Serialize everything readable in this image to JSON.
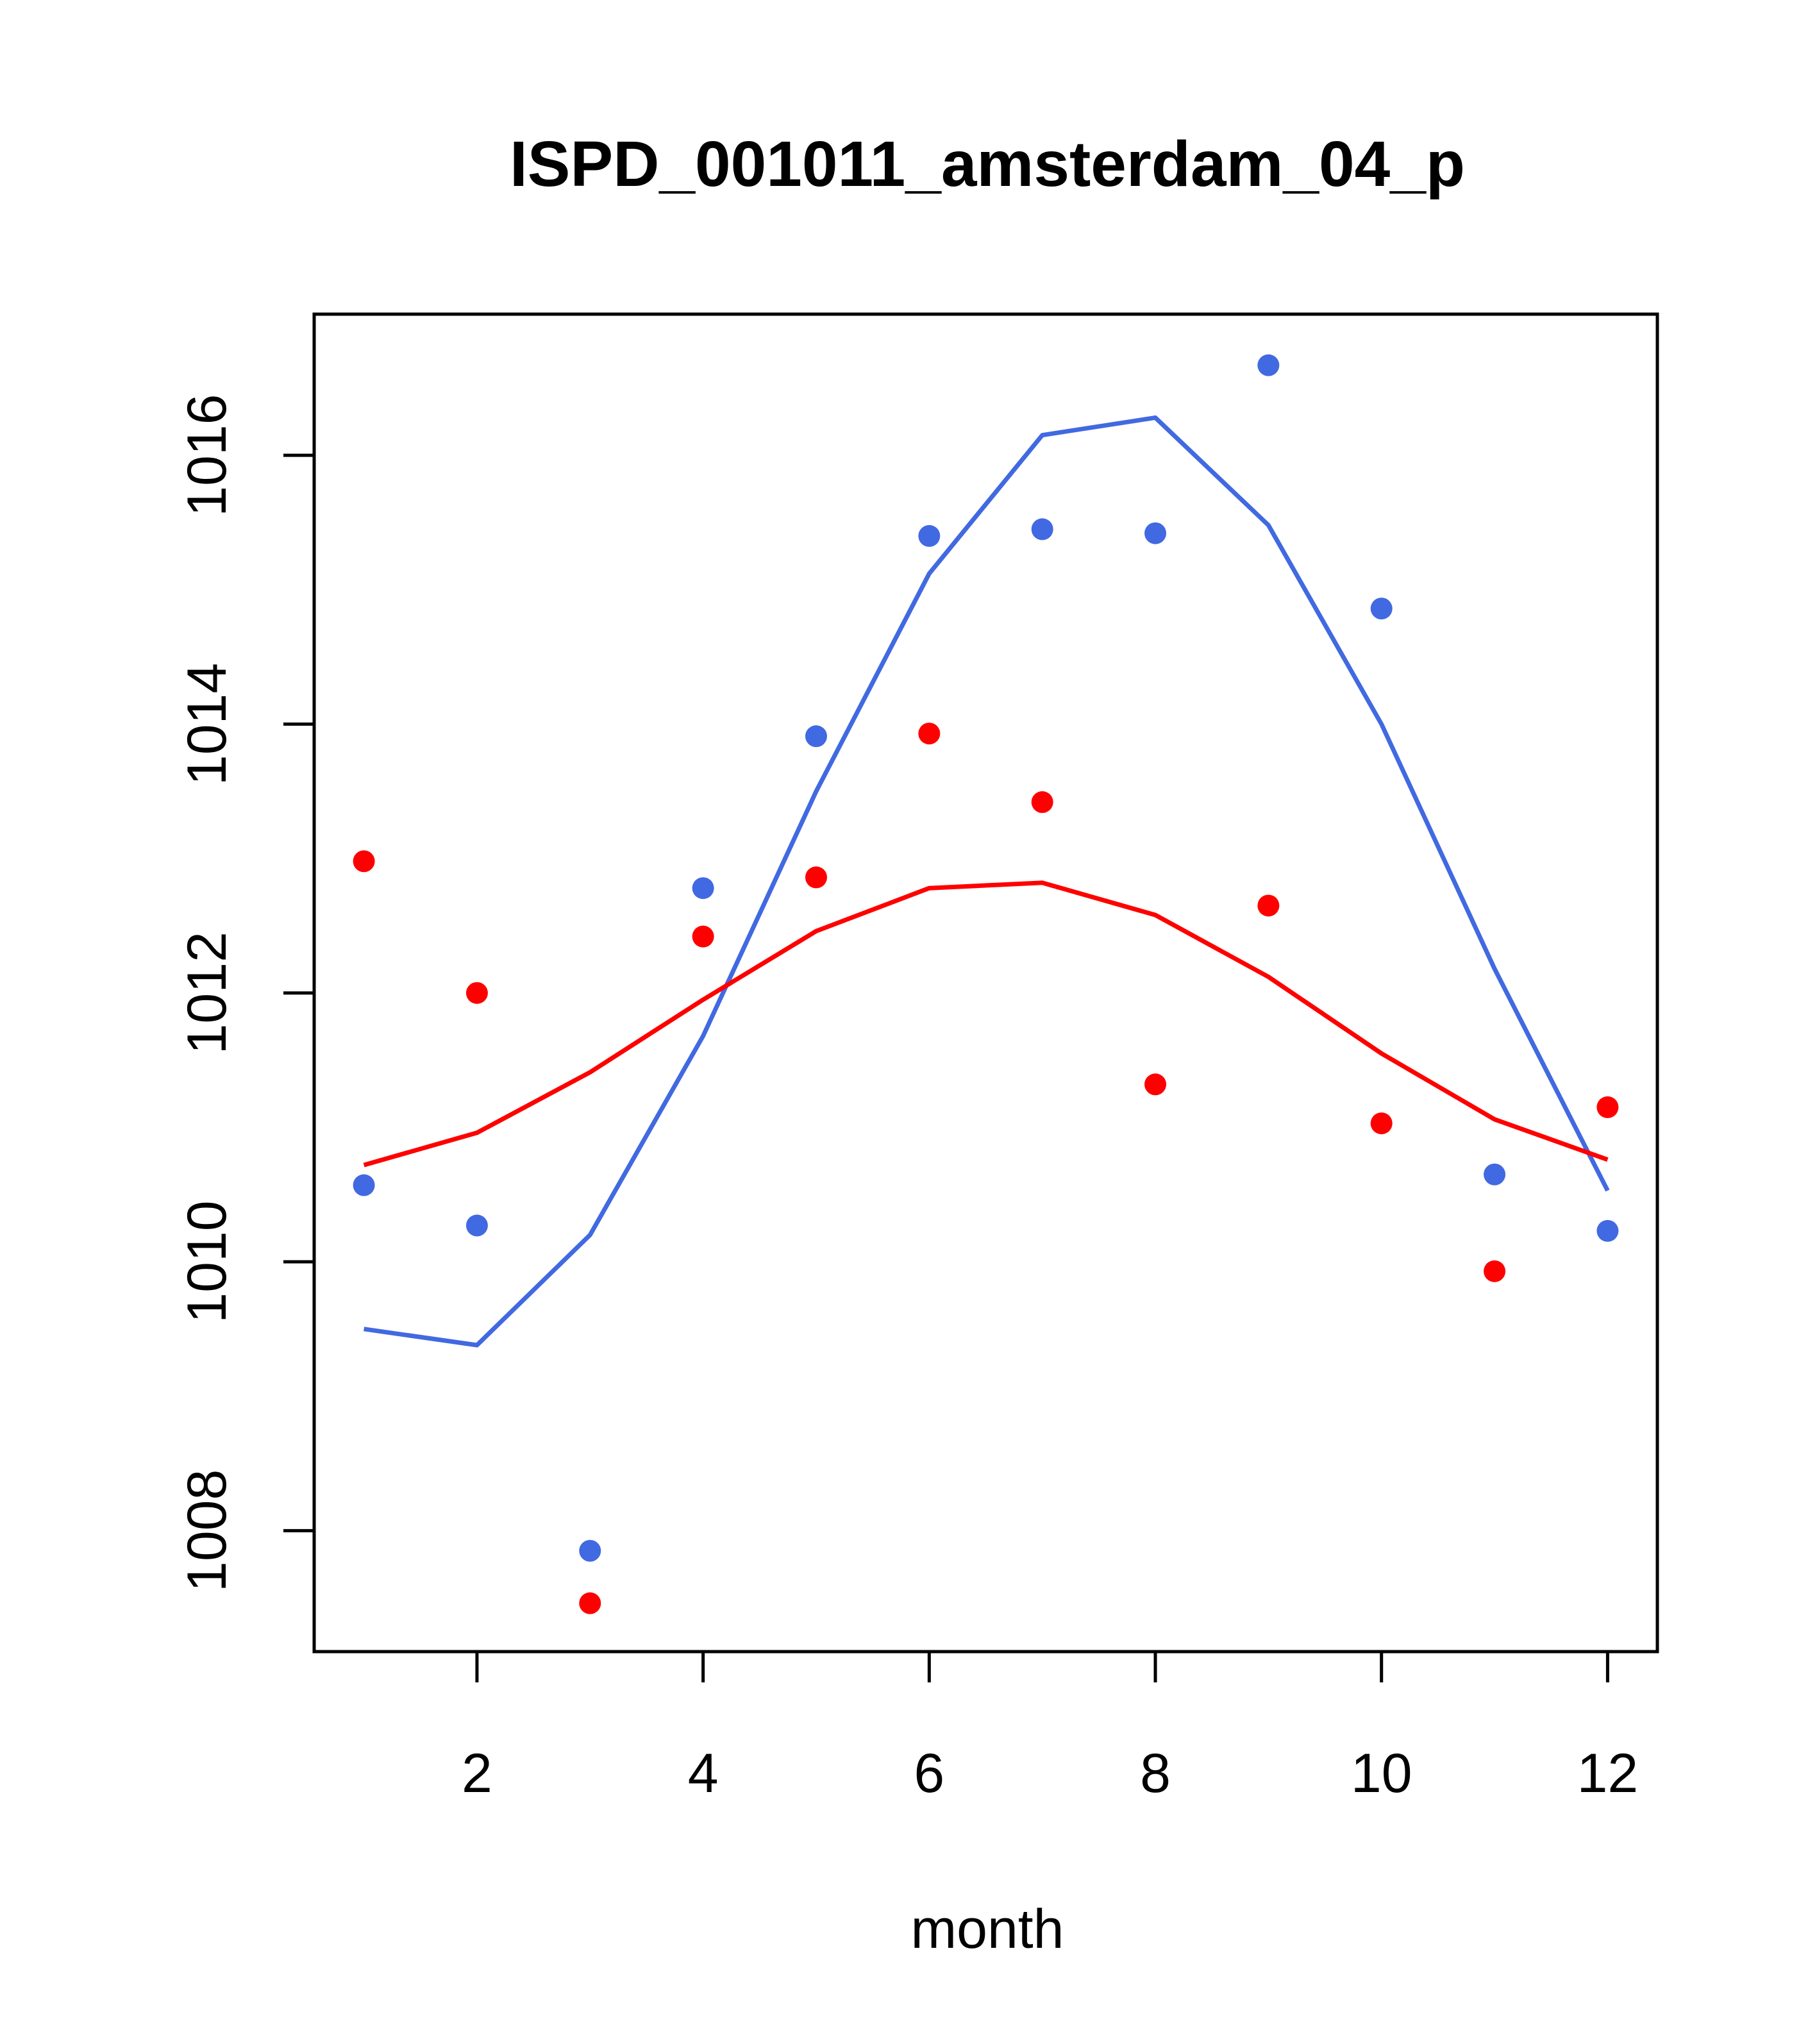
{
  "chart_data": {
    "type": "scatter",
    "title": "ISPD_001011_amsterdam_04_p",
    "xlabel": "month",
    "ylabel": "",
    "xlim": [
      0.56,
      12.44
    ],
    "ylim": [
      1007.1,
      1017.05
    ],
    "x_ticks": [
      2,
      4,
      6,
      8,
      10,
      12
    ],
    "x_tick_labels": [
      "2",
      "4",
      "6",
      "8",
      "10",
      "12"
    ],
    "y_ticks": [
      1008,
      1010,
      1012,
      1014,
      1016
    ],
    "y_tick_labels": [
      "1008",
      "1010",
      "1012",
      "1014",
      "1016"
    ],
    "grid": false,
    "x": [
      1,
      2,
      3,
      4,
      5,
      6,
      7,
      8,
      9,
      10,
      11,
      12
    ],
    "series": [
      {
        "name": "blue points",
        "kind": "points",
        "color": "#4169E1",
        "values": [
          1010.57,
          1010.27,
          1007.85,
          1012.78,
          1013.91,
          1015.4,
          1015.45,
          1015.42,
          1016.67,
          1014.86,
          1010.65,
          1010.23
        ]
      },
      {
        "name": "blue curve",
        "kind": "line",
        "color": "#4169E1",
        "values": [
          1009.5,
          1009.38,
          1010.2,
          1011.68,
          1013.5,
          1015.12,
          1016.15,
          1016.28,
          1015.48,
          1014.0,
          1012.18,
          1010.53
        ]
      },
      {
        "name": "red points",
        "kind": "points",
        "color": "#FF0000",
        "values": [
          1012.98,
          1012.0,
          1007.46,
          1012.42,
          1012.86,
          1013.93,
          1013.42,
          1011.32,
          1012.65,
          1011.03,
          1009.93,
          1011.15
        ]
      },
      {
        "name": "red curve",
        "kind": "line",
        "color": "#FF0000",
        "values": [
          1010.72,
          1010.96,
          1011.41,
          1011.95,
          1012.46,
          1012.78,
          1012.82,
          1012.58,
          1012.12,
          1011.55,
          1011.06,
          1010.76
        ]
      }
    ]
  }
}
